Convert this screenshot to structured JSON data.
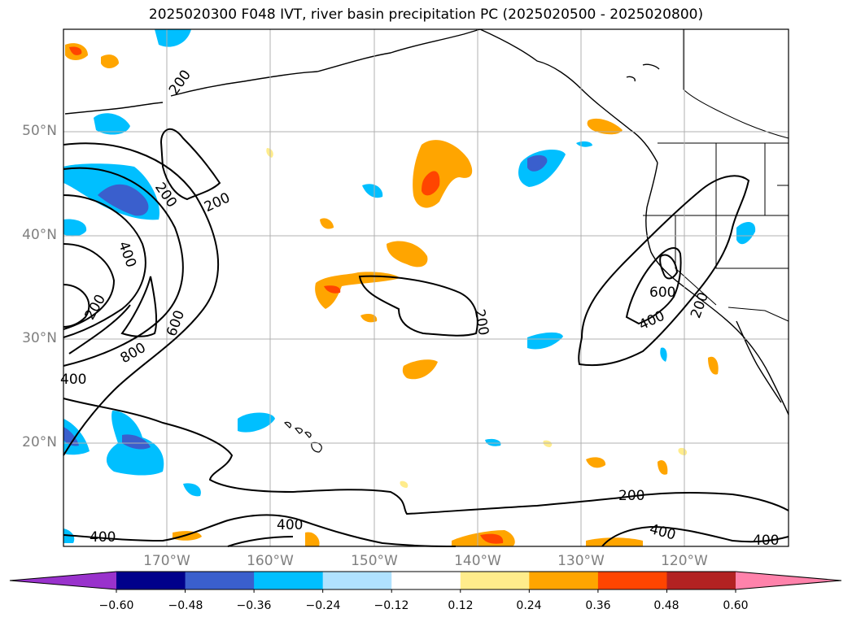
{
  "title": "2025020300 F048 IVT, river basin precipitation PC (2025020500 - 2025020800)",
  "lat_labels": [
    "50°N",
    "40°N",
    "30°N",
    "20°N"
  ],
  "lon_labels": [
    "170°W",
    "160°W",
    "150°W",
    "140°W",
    "130°W",
    "120°W"
  ],
  "contour_labels": [
    "200",
    "200",
    "200",
    "400",
    "200",
    "600",
    "800",
    "400",
    "200",
    "600",
    "400",
    "200",
    "200",
    "400",
    "400",
    "400",
    "400"
  ],
  "colorbar": {
    "ticks": [
      "−0.60",
      "−0.48",
      "−0.36",
      "−0.24",
      "−0.12",
      "0.12",
      "0.24",
      "0.36",
      "0.48",
      "0.60"
    ],
    "colors": [
      "#9932cc",
      "#00008b",
      "#3a5fcd",
      "#00bfff",
      "#b0e2ff",
      "#ffffff",
      "#ffec8b",
      "#ffa500",
      "#ff4500",
      "#b22222",
      "#ff82ab"
    ]
  },
  "colors": {
    "neg_dark": "#3a5fcd",
    "neg_mid": "#00bfff",
    "neg_light": "#b0e2ff",
    "pos_light": "#ffec8b",
    "pos_mid": "#ffa500",
    "pos_dark": "#ff4500",
    "grid": "#b0b0b0"
  }
}
